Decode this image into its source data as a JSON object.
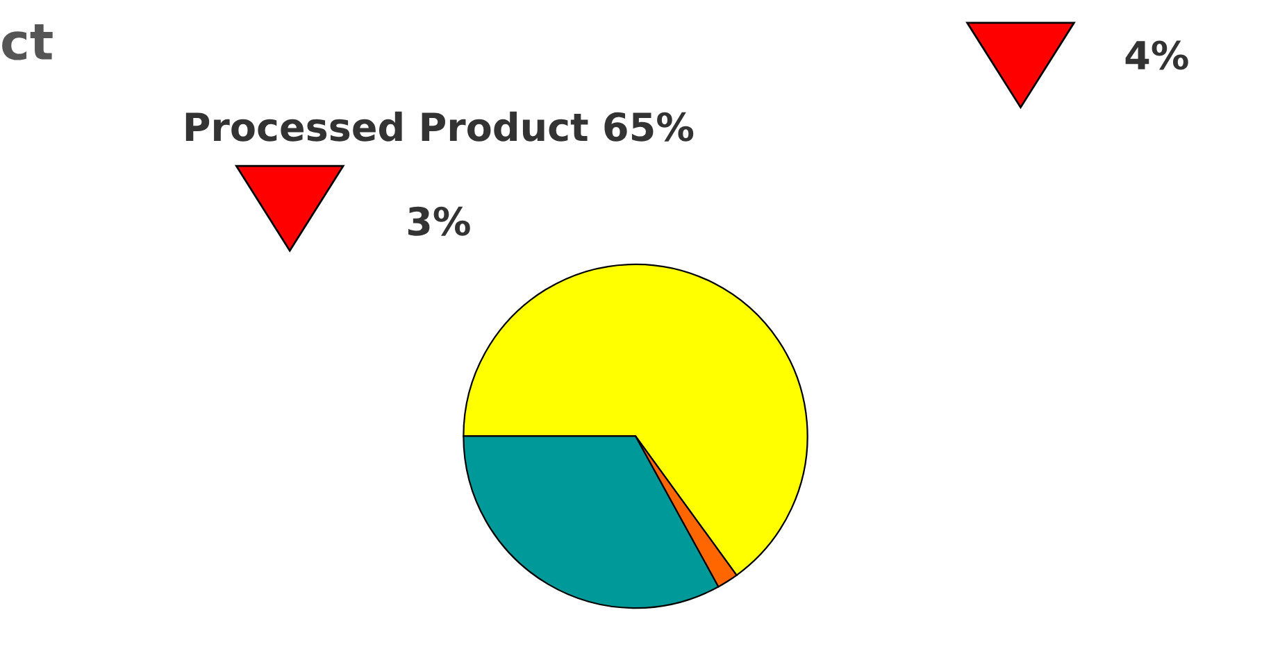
{
  "chart_data": {
    "type": "pie",
    "title": "ct",
    "categories": [
      "Processed Product",
      null,
      null
    ],
    "values": [
      65,
      2,
      33
    ],
    "value_labels": [
      "65%",
      null,
      null
    ],
    "colors": [
      "#ffff00",
      "#ff6600",
      "#009999"
    ],
    "annotations": [
      "3%",
      "4%"
    ],
    "legend": false
  }
}
